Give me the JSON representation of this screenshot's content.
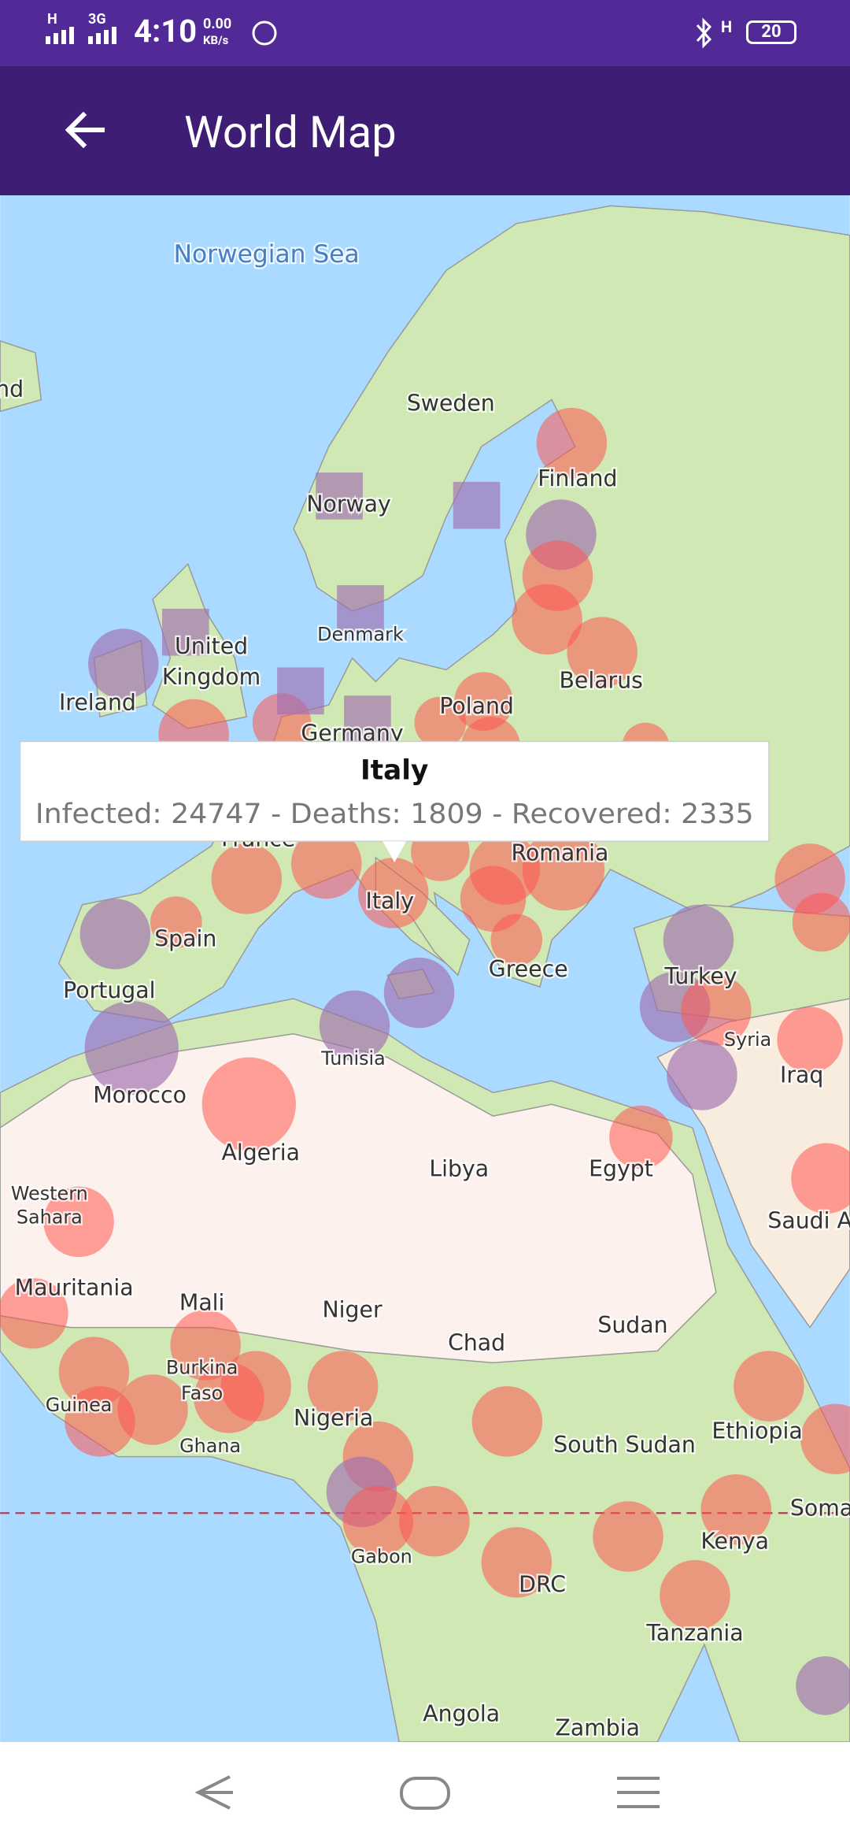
{
  "status_bar": {
    "network1": "H",
    "network2": "3G",
    "time": "4:10",
    "speed": "0.00",
    "speed_unit": "KB/s",
    "right_network": "H",
    "battery": "20"
  },
  "app_bar": {
    "title": "World Map"
  },
  "map": {
    "sea_label": "Norwegian Sea",
    "labels": [
      "nd",
      "Sweden",
      "Finland",
      "Norway",
      "Denmark",
      [
        "United",
        "Kingdom"
      ],
      "Ireland",
      "Belarus",
      "Poland",
      "Germany",
      "France",
      "Romania",
      "Italy",
      "Spain",
      "Portugal",
      "Greece",
      "Turkey",
      "Syria",
      "Iraq",
      "Tunisia",
      "Morocco",
      "Algeria",
      "Libya",
      "Egypt",
      [
        "Western",
        "Sahara"
      ],
      "Saudi A",
      "Mauritania",
      "Mali",
      "Niger",
      "Chad",
      "Sudan",
      [
        "Burkina",
        "Faso"
      ],
      "Guinea",
      "Ghana",
      "Nigeria",
      "South Sudan",
      "Ethiopia",
      "Soma",
      "Kenya",
      "Gabon",
      "DRC",
      "Tanzania",
      "Angola",
      "Zambia"
    ]
  },
  "tooltip": {
    "title": "Italy",
    "text": "Infected: 24747 - Deaths: 1809 - Recovered: 2335"
  }
}
